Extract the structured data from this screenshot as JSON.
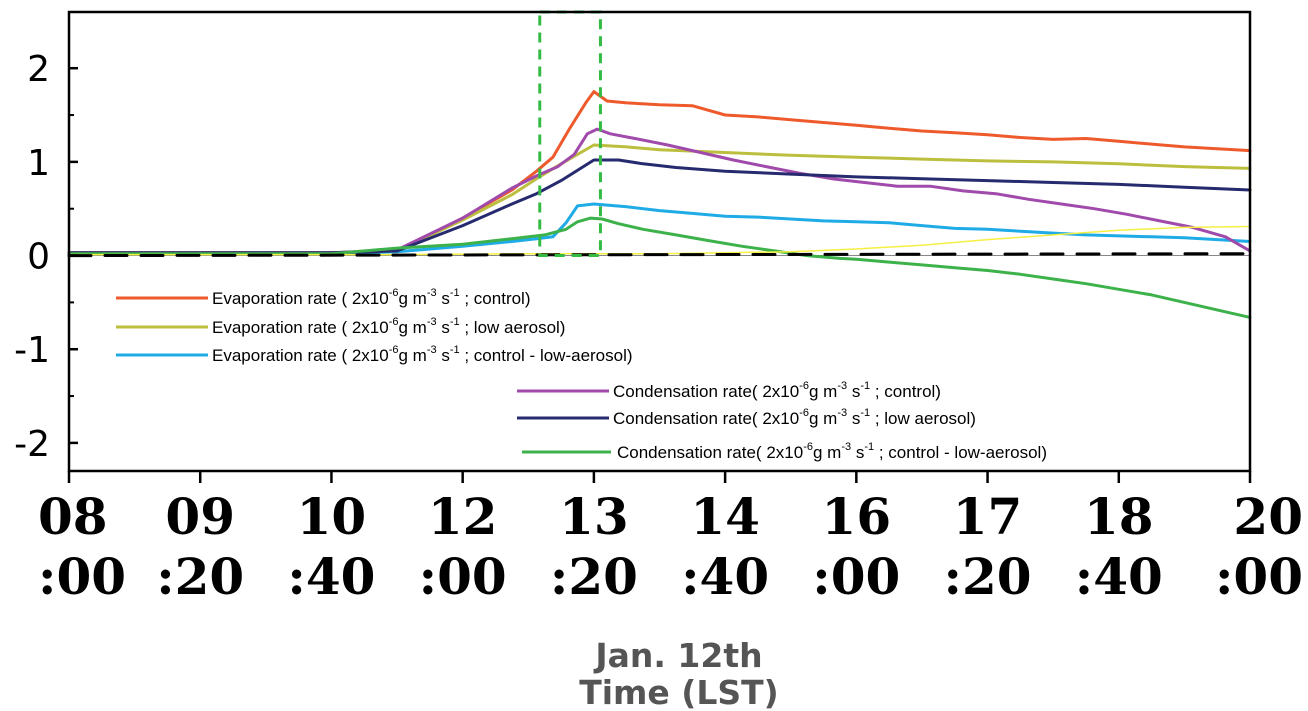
{
  "chart_data": {
    "type": "line",
    "title": "",
    "xlabel_lines": [
      "Jan. 12th",
      "Time (LST)"
    ],
    "ylabel": "",
    "ylim": [
      -2.3,
      2.6
    ],
    "xlim": [
      0,
      720
    ],
    "yticks": [
      {
        "value": 2,
        "label": "2"
      },
      {
        "value": 1,
        "label": "1"
      },
      {
        "value": 0,
        "label": "0"
      },
      {
        "value": -1,
        "label": "-1"
      },
      {
        "value": -2,
        "label": "-2"
      }
    ],
    "xticks": [
      {
        "value": 0,
        "line1": "08",
        "line2": ":00"
      },
      {
        "value": 80,
        "line1": "09",
        "line2": ":20"
      },
      {
        "value": 160,
        "line1": "10",
        "line2": ":40"
      },
      {
        "value": 240,
        "line1": "12",
        "line2": ":00"
      },
      {
        "value": 320,
        "line1": "13",
        "line2": ":20"
      },
      {
        "value": 400,
        "line1": "14",
        "line2": ":40"
      },
      {
        "value": 480,
        "line1": "16",
        "line2": ":00"
      },
      {
        "value": 560,
        "line1": "17",
        "line2": ":20"
      },
      {
        "value": 640,
        "line1": "18",
        "line2": ":40"
      },
      {
        "value": 720,
        "line1": "20",
        "line2": ":00"
      }
    ],
    "x_units": "minutes after 08:00 LST",
    "highlight_box": {
      "x": [
        287,
        324
      ],
      "y": [
        0,
        2.6
      ],
      "color": "#33bb44",
      "style": "dashed"
    },
    "zero_line": {
      "color": "#000000",
      "style": "dashed"
    },
    "series": [
      {
        "name": "Evaporation rate ( 2x10-6g m-3 s-1 ; control)",
        "color": "#ee5a2b",
        "x": [
          0,
          160,
          200,
          240,
          270,
          285,
          295,
          305,
          315,
          320,
          328,
          340,
          360,
          380,
          400,
          420,
          440,
          460,
          480,
          500,
          520,
          540,
          560,
          580,
          600,
          620,
          640,
          660,
          680,
          700,
          720
        ],
        "y": [
          0.03,
          0.03,
          0.05,
          0.4,
          0.7,
          0.9,
          1.05,
          1.35,
          1.63,
          1.75,
          1.65,
          1.63,
          1.61,
          1.6,
          1.5,
          1.48,
          1.45,
          1.42,
          1.39,
          1.36,
          1.33,
          1.31,
          1.29,
          1.26,
          1.24,
          1.25,
          1.22,
          1.19,
          1.16,
          1.14,
          1.12
        ]
      },
      {
        "name": "Evaporation rate ( 2x10-6g m-3 s-1 ; low aerosol)",
        "color": "#bcbf3e",
        "x": [
          0,
          160,
          200,
          240,
          270,
          285,
          300,
          320,
          340,
          360,
          400,
          440,
          480,
          520,
          560,
          600,
          640,
          680,
          720
        ],
        "y": [
          0.03,
          0.03,
          0.05,
          0.38,
          0.65,
          0.82,
          0.98,
          1.18,
          1.16,
          1.13,
          1.1,
          1.07,
          1.05,
          1.03,
          1.01,
          1.0,
          0.98,
          0.95,
          0.93
        ]
      },
      {
        "name": "Evaporation rate ( 2x10-6g m-3 s-1 ; control - low-aerosol)",
        "color": "#1eabe6",
        "x": [
          0,
          160,
          200,
          240,
          270,
          285,
          295,
          303,
          310,
          320,
          340,
          360,
          380,
          400,
          420,
          440,
          460,
          480,
          500,
          520,
          540,
          560,
          580,
          600,
          620,
          640,
          660,
          680,
          700,
          720
        ],
        "y": [
          0.02,
          0.02,
          0.04,
          0.1,
          0.15,
          0.18,
          0.2,
          0.35,
          0.53,
          0.55,
          0.52,
          0.48,
          0.45,
          0.42,
          0.41,
          0.39,
          0.37,
          0.36,
          0.35,
          0.32,
          0.29,
          0.28,
          0.26,
          0.24,
          0.22,
          0.21,
          0.2,
          0.19,
          0.17,
          0.15
        ]
      },
      {
        "name": "Condensation rate( 2x10-6g m-3 s-1 ; control)",
        "color": "#a04aab",
        "x": [
          0,
          160,
          200,
          240,
          270,
          285,
          298,
          308,
          316,
          322,
          330,
          345,
          365,
          385,
          405,
          425,
          445,
          465,
          485,
          505,
          525,
          545,
          565,
          585,
          605,
          625,
          645,
          665,
          685,
          705,
          720
        ],
        "y": [
          0.03,
          0.03,
          0.06,
          0.4,
          0.72,
          0.85,
          0.95,
          1.08,
          1.3,
          1.35,
          1.3,
          1.25,
          1.18,
          1.1,
          1.02,
          0.95,
          0.88,
          0.82,
          0.78,
          0.74,
          0.74,
          0.69,
          0.66,
          0.6,
          0.55,
          0.5,
          0.44,
          0.37,
          0.3,
          0.2,
          0.05
        ]
      },
      {
        "name": "Condensation rate( 2x10-6g m-3 s-1 ; low aerosol)",
        "color": "#262a6e",
        "x": [
          0,
          160,
          200,
          240,
          270,
          285,
          300,
          320,
          335,
          350,
          370,
          400,
          440,
          480,
          520,
          560,
          600,
          640,
          680,
          720
        ],
        "y": [
          0.03,
          0.03,
          0.05,
          0.32,
          0.55,
          0.66,
          0.8,
          1.02,
          1.02,
          0.98,
          0.94,
          0.9,
          0.87,
          0.84,
          0.82,
          0.8,
          0.78,
          0.76,
          0.73,
          0.7
        ]
      },
      {
        "name": "Condensation rate( 2x10-6g m-3 s-1 ; control - low-aerosol)",
        "color": "#3db24b",
        "x": [
          0,
          160,
          200,
          240,
          270,
          290,
          303,
          310,
          318,
          325,
          335,
          350,
          370,
          390,
          410,
          430,
          450,
          470,
          480,
          500,
          520,
          540,
          560,
          580,
          600,
          620,
          640,
          660,
          680,
          700,
          720
        ],
        "y": [
          0.02,
          0.02,
          0.08,
          0.12,
          0.18,
          0.22,
          0.28,
          0.36,
          0.4,
          0.39,
          0.34,
          0.28,
          0.22,
          0.16,
          0.1,
          0.05,
          0.0,
          -0.03,
          -0.04,
          -0.07,
          -0.1,
          -0.13,
          -0.16,
          -0.2,
          -0.25,
          -0.3,
          -0.36,
          -0.42,
          -0.5,
          -0.58,
          -0.66
        ]
      },
      {
        "name": "",
        "color": "#f5ef43",
        "x": [
          0,
          200,
          280,
          360,
          400,
          440,
          480,
          520,
          560,
          600,
          640,
          680,
          720
        ],
        "y": [
          0.01,
          0.01,
          0.02,
          0.02,
          0.03,
          0.04,
          0.07,
          0.11,
          0.17,
          0.22,
          0.27,
          0.3,
          0.31
        ]
      },
      {
        "name": "",
        "color": "#000000",
        "dashed": true,
        "x": [
          0,
          720
        ],
        "y": [
          0.0,
          0.02
        ]
      }
    ],
    "legend": [
      {
        "series": 0,
        "pre": "Evaporation rate ( 2x10",
        "e1": "-6",
        "mid1": "g m",
        "e2": "-3",
        "mid2": " s",
        "e3": "-1",
        "post": " ; control)"
      },
      {
        "series": 1,
        "pre": "Evaporation rate  ( 2x10",
        "e1": "-6",
        "mid1": "g m",
        "e2": "-3",
        "mid2": " s",
        "e3": "-1",
        "post": " ; low aerosol)"
      },
      {
        "series": 2,
        "pre": "Evaporation rate ( 2x10",
        "e1": "-6",
        "mid1": "g m",
        "e2": "-3",
        "mid2": " s",
        "e3": "-1",
        "post": " ; control - low-aerosol)"
      },
      {
        "series": 3,
        "pre": "Condensation rate( 2x10",
        "e1": "-6",
        "mid1": "g m",
        "e2": "-3",
        "mid2": " s",
        "e3": "-1",
        "post": " ; control)"
      },
      {
        "series": 4,
        "pre": "Condensation rate( 2x10",
        "e1": "-6",
        "mid1": "g m",
        "e2": "-3",
        "mid2": " s",
        "e3": "-1",
        "post": " ; low aerosol)"
      },
      {
        "series": 5,
        "pre": "Condensation rate( 2x10",
        "e1": "-6",
        "mid1": "g m",
        "e2": "-3",
        "mid2": " s",
        "e3": "-1",
        "post": " ; control - low-aerosol)"
      }
    ]
  }
}
